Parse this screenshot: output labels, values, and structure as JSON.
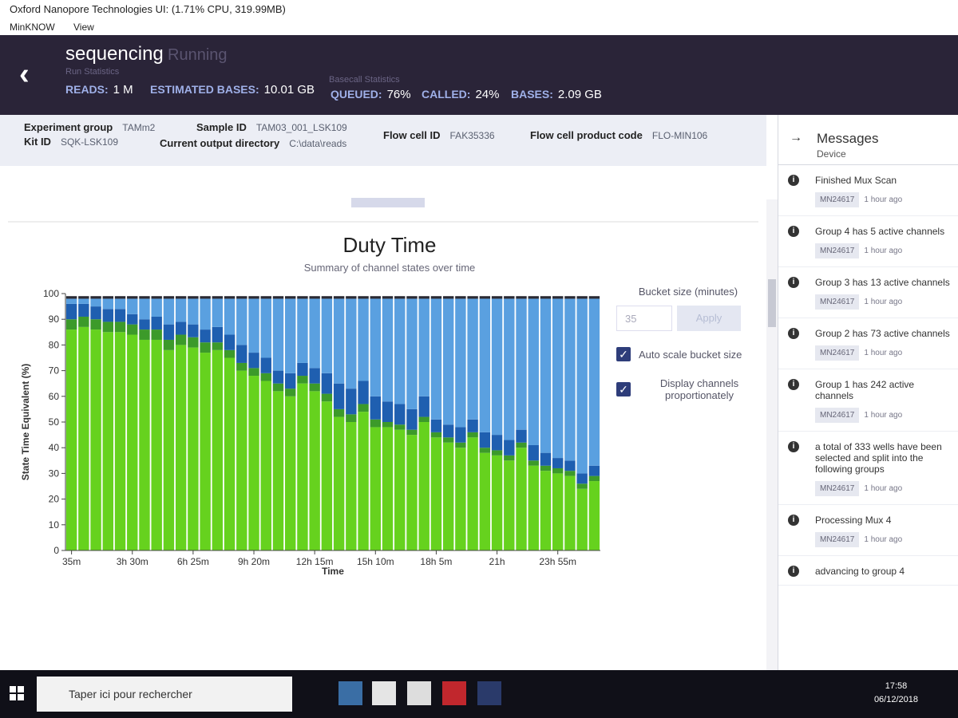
{
  "window": {
    "title": "Oxford Nanopore Technologies UI: (1.71% CPU, 319.99MB)",
    "menu": [
      "MinKNOW",
      "View"
    ]
  },
  "header": {
    "title": "sequencing",
    "status": "Running",
    "subtitle": "Run Statistics",
    "stats": [
      {
        "label": "READS:",
        "value": "1 M"
      },
      {
        "label": "ESTIMATED BASES:",
        "value": "10.01 GB"
      }
    ],
    "basecall": {
      "title": "Basecall Statistics",
      "stats": [
        {
          "label": "QUEUED:",
          "value": "76%"
        },
        {
          "label": "CALLED:",
          "value": "24%"
        },
        {
          "label": "BASES:",
          "value": "2.09 GB"
        }
      ]
    }
  },
  "info": [
    {
      "label": "Experiment group",
      "value": "TAMm2"
    },
    {
      "label": "Kit ID",
      "value": "SQK-LSK109"
    },
    {
      "label": "Sample ID",
      "value": "TAM03_001_LSK109"
    },
    {
      "label": "Current output directory",
      "value": "C:\\data\\reads"
    },
    {
      "label": "Flow cell ID",
      "value": "FAK35336"
    },
    {
      "label": "Flow cell product code",
      "value": "FLO-MIN106"
    }
  ],
  "controls": {
    "bucket_label": "Bucket size (minutes)",
    "bucket_value": "35",
    "apply": "Apply",
    "checkboxes": [
      "Auto scale bucket size",
      "Display channels proportionately"
    ]
  },
  "chart_data": {
    "type": "stacked_bar",
    "title": "Duty Time",
    "subtitle": "Summary of channel states over time",
    "ylabel": "State Time Equivalent (%)",
    "xlabel": "Time",
    "ylim": [
      0,
      100
    ],
    "yticks": [
      0,
      10,
      20,
      30,
      40,
      50,
      60,
      70,
      80,
      90,
      100
    ],
    "categories": [
      "35m",
      null,
      null,
      null,
      null,
      "3h 30m",
      null,
      null,
      null,
      null,
      "6h 25m",
      null,
      null,
      null,
      null,
      "9h 20m",
      null,
      null,
      null,
      null,
      "12h 15m",
      null,
      null,
      null,
      null,
      "15h 10m",
      null,
      null,
      null,
      null,
      "18h 5m",
      null,
      null,
      null,
      null,
      "21h",
      null,
      null,
      null,
      null,
      "23h 55m",
      null,
      null,
      null
    ],
    "series": [
      {
        "color": "#66d21e",
        "values": [
          86,
          87,
          86,
          85,
          85,
          84,
          82,
          82,
          78,
          80,
          79,
          77,
          78,
          75,
          70,
          68,
          66,
          62,
          60,
          65,
          62,
          58,
          52,
          50,
          54,
          48,
          48,
          47,
          45,
          50,
          44,
          42,
          40,
          44,
          38,
          37,
          35,
          40,
          33,
          31,
          30,
          29,
          24,
          27
        ]
      },
      {
        "color": "#3c9a2a",
        "values": [
          4,
          4,
          4,
          4,
          4,
          4,
          4,
          4,
          4,
          4,
          4,
          4,
          3,
          3,
          3,
          3,
          3,
          3,
          3,
          3,
          3,
          3,
          3,
          3,
          3,
          3,
          2,
          2,
          2,
          2,
          2,
          2,
          2,
          2,
          2,
          2,
          2,
          2,
          2,
          2,
          2,
          2,
          2,
          2
        ]
      },
      {
        "color": "#1f5fb0",
        "values": [
          6,
          5,
          5,
          5,
          5,
          4,
          4,
          5,
          6,
          5,
          5,
          5,
          6,
          6,
          7,
          6,
          6,
          5,
          6,
          5,
          6,
          8,
          10,
          10,
          9,
          9,
          8,
          8,
          8,
          8,
          5,
          5,
          6,
          5,
          6,
          6,
          6,
          5,
          6,
          5,
          4,
          4,
          4,
          4
        ]
      },
      {
        "color": "#5aa0e0",
        "values": [
          2,
          2,
          3,
          4,
          4,
          6,
          8,
          7,
          10,
          9,
          10,
          12,
          11,
          14,
          18,
          21,
          23,
          28,
          29,
          25,
          27,
          29,
          33,
          35,
          32,
          38,
          40,
          41,
          43,
          38,
          47,
          49,
          50,
          47,
          52,
          53,
          55,
          51,
          57,
          60,
          62,
          63,
          68,
          65
        ]
      },
      {
        "color": "#2a2a33",
        "values": [
          1,
          1,
          1,
          1,
          1,
          1,
          1,
          1,
          1,
          1,
          1,
          1,
          1,
          1,
          1,
          1,
          1,
          1,
          1,
          1,
          1,
          1,
          1,
          1,
          1,
          1,
          1,
          1,
          1,
          1,
          1,
          1,
          1,
          1,
          1,
          1,
          1,
          1,
          1,
          1,
          1,
          1,
          1,
          1
        ]
      }
    ]
  },
  "messages": {
    "title": "Messages",
    "tab": "Device",
    "items": [
      {
        "text": "Finished Mux Scan",
        "device": "MN24617",
        "time": "1 hour ago"
      },
      {
        "text": "Group 4 has 5 active channels",
        "device": "MN24617",
        "time": "1 hour ago"
      },
      {
        "text": "Group 3 has 13 active channels",
        "device": "MN24617",
        "time": "1 hour ago"
      },
      {
        "text": "Group 2 has 73 active channels",
        "device": "MN24617",
        "time": "1 hour ago"
      },
      {
        "text": "Group 1 has 242 active channels",
        "device": "MN24617",
        "time": "1 hour ago"
      },
      {
        "text": "a total of 333 wells have been selected and split into the following groups",
        "device": "MN24617",
        "time": "1 hour ago"
      },
      {
        "text": "Processing Mux 4",
        "device": "MN24617",
        "time": "1 hour ago"
      },
      {
        "text": "advancing to group 4"
      }
    ]
  },
  "taskbar": {
    "search": "Taper ici pour rechercher",
    "time": "17:58",
    "date": "06/12/2018"
  }
}
